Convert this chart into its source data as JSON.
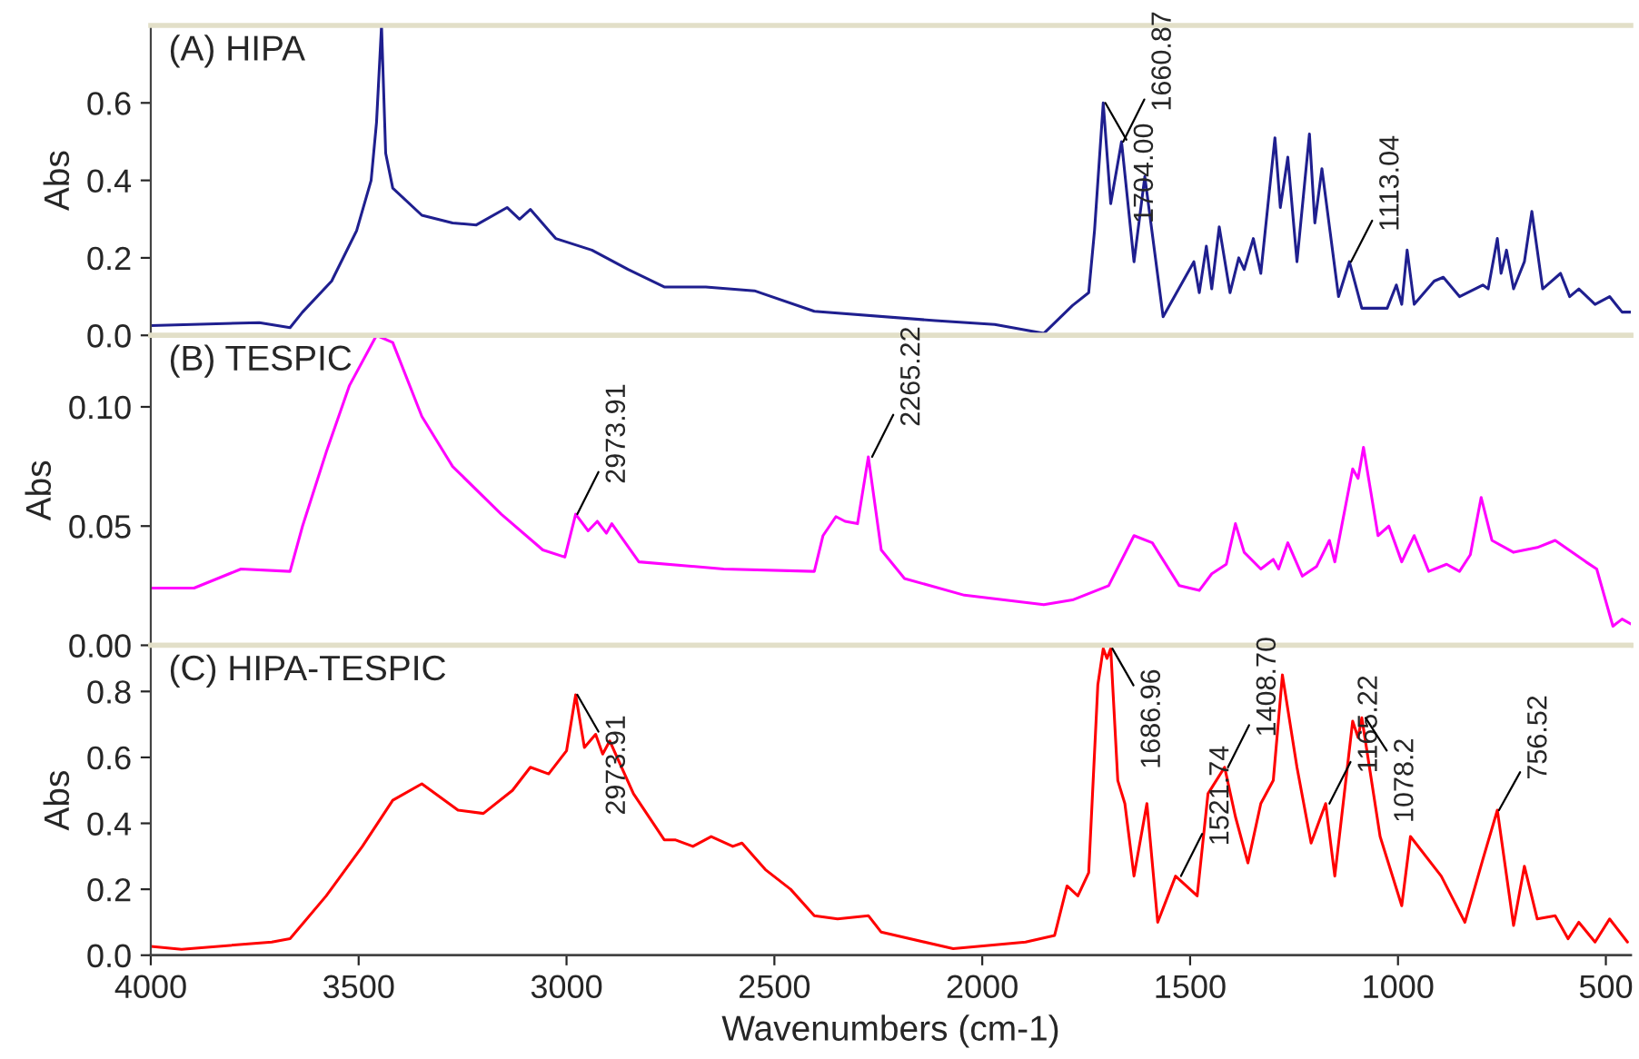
{
  "chart_data": [
    {
      "type": "line",
      "title": "(A) HIPA",
      "ylabel": "Abs",
      "xlim": [
        4000,
        440
      ],
      "ylim": [
        0,
        0.8
      ],
      "yticks": [
        {
          "value": 0,
          "label": "0.0"
        },
        {
          "value": 0.2,
          "label": "0.2"
        },
        {
          "value": 0.4,
          "label": "0.4"
        },
        {
          "value": 0.6,
          "label": "0.6"
        }
      ],
      "tick_labels": "y",
      "series": [
        {
          "color": "#1f1f8f",
          "x": [
            4000,
            3739,
            3665,
            3635,
            3565,
            3505,
            3470,
            3457,
            3445,
            3435,
            3418,
            3348,
            3274,
            3217,
            3143,
            3113,
            3087,
            3026,
            2939,
            2852,
            2765,
            2665,
            2548,
            2404,
            2113,
            1970,
            1852,
            1783,
            1744,
            1730,
            1709,
            1691,
            1665,
            1635,
            1609,
            1565,
            1491,
            1478,
            1461,
            1448,
            1430,
            1404,
            1383,
            1370,
            1348,
            1330,
            1296,
            1283,
            1265,
            1243,
            1213,
            1200,
            1183,
            1143,
            1117,
            1087,
            1026,
            1004,
            991,
            978,
            961,
            913,
            891,
            852,
            796,
            783,
            761,
            752,
            739,
            722,
            696,
            678,
            652,
            609,
            587,
            565,
            526,
            491,
            461,
            440
          ],
          "values": [
            0.025,
            0.033,
            0.02,
            0.06,
            0.14,
            0.27,
            0.4,
            0.55,
            0.8,
            0.47,
            0.38,
            0.31,
            0.29,
            0.285,
            0.33,
            0.3,
            0.325,
            0.25,
            0.22,
            0.17,
            0.125,
            0.125,
            0.115,
            0.062,
            0.038,
            0.028,
            0.005,
            0.077,
            0.11,
            0.27,
            0.6,
            0.34,
            0.5,
            0.19,
            0.41,
            0.048,
            0.19,
            0.11,
            0.23,
            0.12,
            0.28,
            0.11,
            0.2,
            0.17,
            0.25,
            0.16,
            0.51,
            0.33,
            0.46,
            0.19,
            0.52,
            0.29,
            0.43,
            0.1,
            0.19,
            0.07,
            0.07,
            0.13,
            0.08,
            0.22,
            0.08,
            0.14,
            0.15,
            0.1,
            0.13,
            0.12,
            0.25,
            0.16,
            0.22,
            0.12,
            0.19,
            0.32,
            0.12,
            0.16,
            0.1,
            0.12,
            0.08,
            0.1,
            0.06,
            0.06
          ]
        }
      ],
      "annotations": [
        {
          "text": "1704.00",
          "x": 1704,
          "y": 0.6
        },
        {
          "text": "1660.87",
          "x": 1661,
          "y": 0.5
        },
        {
          "text": "1113.04",
          "x": 1113,
          "y": 0.19
        }
      ]
    },
    {
      "type": "line",
      "title": "(B) TESPIC",
      "ylabel": "Abs",
      "xlim": [
        4000,
        440
      ],
      "ylim": [
        0,
        0.13
      ],
      "yticks": [
        {
          "value": 0,
          "label": "0.00"
        },
        {
          "value": 0.05,
          "label": "0.05"
        },
        {
          "value": 0.1,
          "label": "0.10"
        }
      ],
      "tick_labels": "y",
      "series": [
        {
          "color": "#ff00ff",
          "x": [
            4000,
            3896,
            3783,
            3665,
            3635,
            3578,
            3522,
            3457,
            3418,
            3348,
            3274,
            3157,
            3057,
            3004,
            2978,
            2948,
            2926,
            2904,
            2891,
            2826,
            2622,
            2404,
            2383,
            2352,
            2330,
            2300,
            2274,
            2243,
            2187,
            2043,
            1852,
            1783,
            1696,
            1635,
            1591,
            1526,
            1478,
            1448,
            1413,
            1391,
            1370,
            1330,
            1300,
            1287,
            1265,
            1230,
            1196,
            1165,
            1152,
            1109,
            1096,
            1083,
            1048,
            1022,
            991,
            961,
            926,
            883,
            852,
            826,
            800,
            774,
            722,
            665,
            622,
            548,
            522,
            483,
            461,
            440
          ],
          "values": [
            0.024,
            0.024,
            0.032,
            0.031,
            0.05,
            0.081,
            0.109,
            0.13,
            0.127,
            0.096,
            0.075,
            0.055,
            0.04,
            0.037,
            0.055,
            0.048,
            0.052,
            0.047,
            0.051,
            0.035,
            0.032,
            0.031,
            0.046,
            0.054,
            0.052,
            0.051,
            0.079,
            0.04,
            0.028,
            0.021,
            0.017,
            0.019,
            0.025,
            0.046,
            0.043,
            0.025,
            0.023,
            0.03,
            0.034,
            0.051,
            0.039,
            0.032,
            0.036,
            0.032,
            0.043,
            0.029,
            0.033,
            0.044,
            0.035,
            0.074,
            0.07,
            0.083,
            0.046,
            0.05,
            0.035,
            0.046,
            0.031,
            0.034,
            0.031,
            0.038,
            0.062,
            0.044,
            0.039,
            0.041,
            0.044,
            0.035,
            0.032,
            0.008,
            0.011,
            0.009
          ]
        }
      ],
      "annotations": [
        {
          "text": "2973.91",
          "x": 2974,
          "y": 0.055
        },
        {
          "text": "2265.22",
          "x": 2265,
          "y": 0.079
        }
      ]
    },
    {
      "type": "line",
      "title": "(C) HIPA-TESPIC",
      "ylabel": "Abs",
      "xlabel": "Wavenumbers (cm-1)",
      "xlim": [
        4000,
        440
      ],
      "ylim": [
        0,
        0.94
      ],
      "xticks": [
        4000,
        3500,
        3000,
        2500,
        2000,
        1500,
        1000,
        500
      ],
      "yticks": [
        {
          "value": 0,
          "label": "0.0"
        },
        {
          "value": 0.2,
          "label": "0.2"
        },
        {
          "value": 0.4,
          "label": "0.4"
        },
        {
          "value": 0.6,
          "label": "0.6"
        },
        {
          "value": 0.8,
          "label": "0.8"
        }
      ],
      "series": [
        {
          "color": "#ff0000",
          "x": [
            4000,
            3926,
            3709,
            3665,
            3578,
            3491,
            3418,
            3348,
            3261,
            3200,
            3130,
            3087,
            3043,
            3000,
            2978,
            2957,
            2930,
            2913,
            2896,
            2839,
            2765,
            2739,
            2696,
            2652,
            2600,
            2578,
            2522,
            2461,
            2404,
            2348,
            2274,
            2243,
            2070,
            1896,
            1826,
            1796,
            1770,
            1744,
            1722,
            1709,
            1700,
            1691,
            1674,
            1657,
            1635,
            1604,
            1578,
            1535,
            1483,
            1457,
            1417,
            1391,
            1361,
            1330,
            1300,
            1278,
            1243,
            1209,
            1174,
            1152,
            1109,
            1096,
            1087,
            1043,
            991,
            970,
            896,
            839,
            796,
            761,
            722,
            696,
            665,
            622,
            591,
            565,
            526,
            491,
            448
          ],
          "values": [
            0.027,
            0.018,
            0.04,
            0.05,
            0.18,
            0.33,
            0.47,
            0.52,
            0.44,
            0.43,
            0.5,
            0.57,
            0.55,
            0.62,
            0.79,
            0.63,
            0.67,
            0.61,
            0.65,
            0.49,
            0.35,
            0.35,
            0.33,
            0.36,
            0.33,
            0.34,
            0.26,
            0.2,
            0.12,
            0.11,
            0.12,
            0.07,
            0.02,
            0.04,
            0.06,
            0.21,
            0.18,
            0.25,
            0.82,
            0.93,
            0.9,
            0.93,
            0.53,
            0.46,
            0.24,
            0.46,
            0.1,
            0.24,
            0.18,
            0.49,
            0.57,
            0.42,
            0.28,
            0.46,
            0.53,
            0.85,
            0.57,
            0.34,
            0.46,
            0.24,
            0.71,
            0.66,
            0.72,
            0.36,
            0.15,
            0.36,
            0.24,
            0.1,
            0.29,
            0.44,
            0.09,
            0.27,
            0.11,
            0.12,
            0.05,
            0.1,
            0.04,
            0.11,
            0.04
          ]
        }
      ],
      "annotations": [
        {
          "text": "2973.91",
          "x": 2974,
          "y": 0.79
        },
        {
          "text": "1686.96",
          "x": 1687,
          "y": 0.93
        },
        {
          "text": "1521.74",
          "x": 1522,
          "y": 0.24
        },
        {
          "text": "1408.70",
          "x": 1409,
          "y": 0.57
        },
        {
          "text": "1165.22",
          "x": 1165,
          "y": 0.46
        },
        {
          "text": "1078.2",
          "x": 1078,
          "y": 0.72
        },
        {
          "text": "756.52",
          "x": 757,
          "y": 0.44
        }
      ]
    }
  ]
}
